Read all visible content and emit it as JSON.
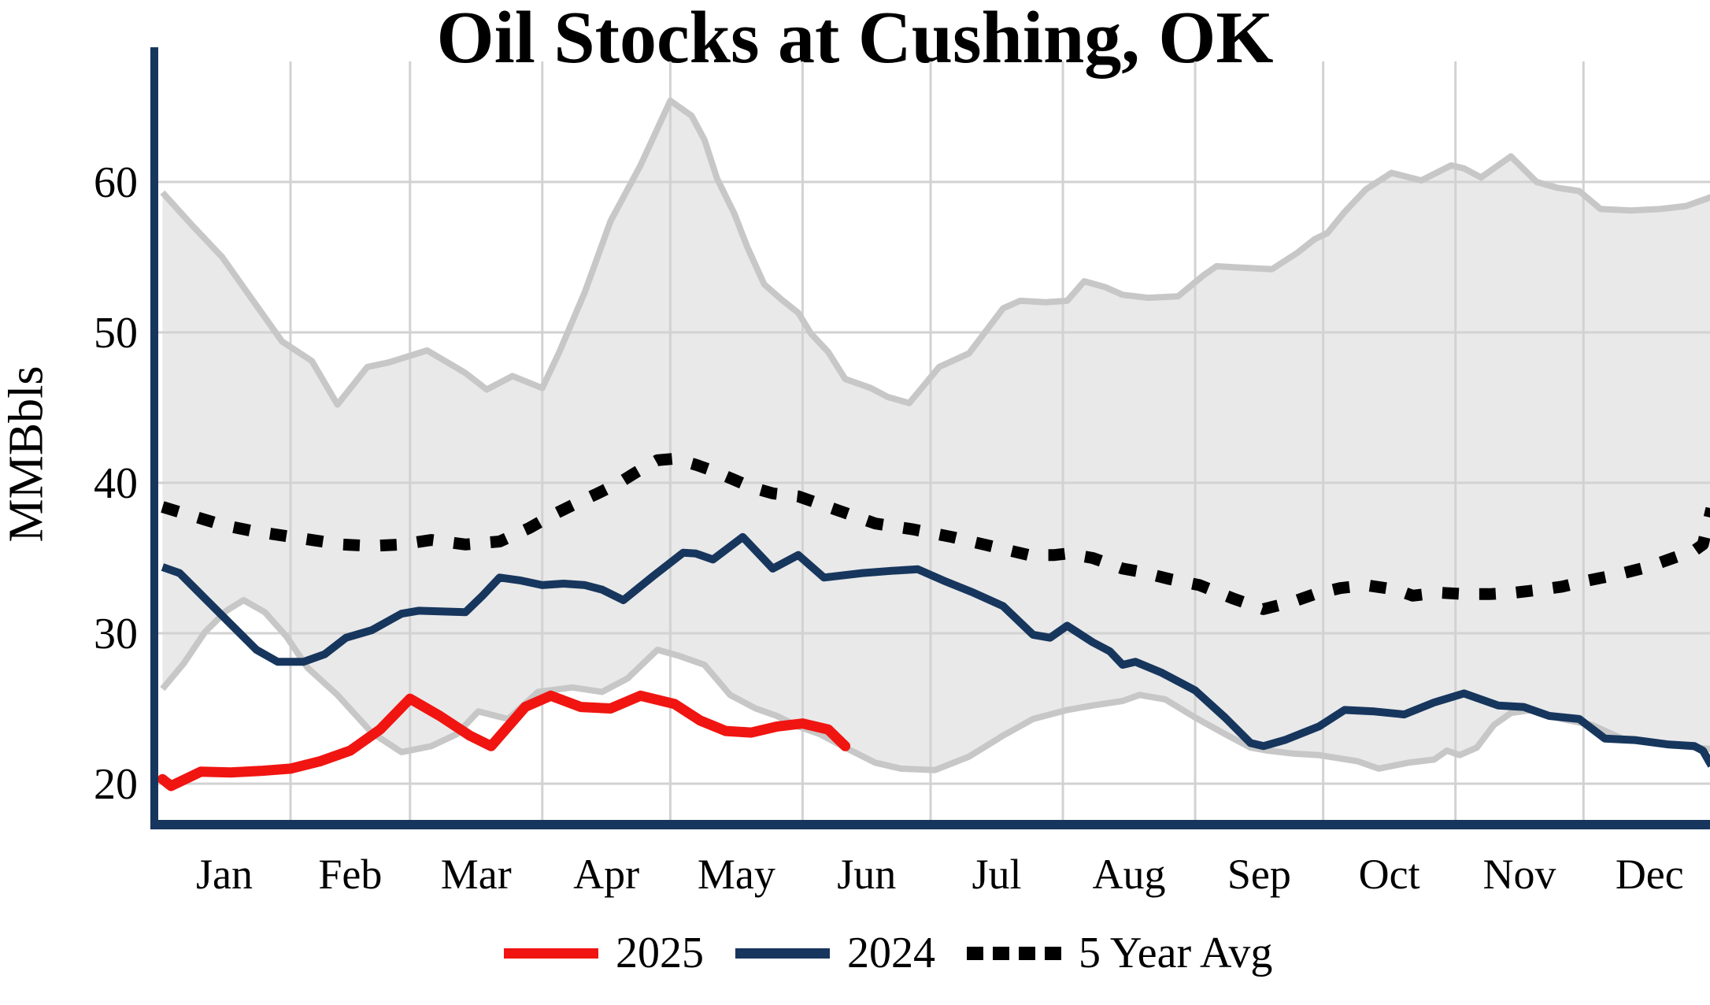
{
  "title": "Oil Stocks at Cushing, OK",
  "y_axis": {
    "label": "MMBbls",
    "ticks": [
      20,
      30,
      40,
      50,
      60
    ]
  },
  "x_axis": {
    "months": [
      "Jan",
      "Feb",
      "Mar",
      "Apr",
      "May",
      "Jun",
      "Jul",
      "Aug",
      "Sep",
      "Oct",
      "Nov",
      "Dec"
    ]
  },
  "legend": {
    "items": [
      {
        "label": "2025",
        "color": "#F01511",
        "style": "solid"
      },
      {
        "label": "2024",
        "color": "#17365D",
        "style": "solid"
      },
      {
        "label": "5 Year Avg",
        "color": "#000000",
        "style": "dotted"
      }
    ]
  },
  "colors": {
    "band_fill": "#E9E9E9",
    "band_edge": "#C7C7C7",
    "gridline": "#D2D2D2",
    "spine": "#17365D",
    "avg_line": "#000000",
    "line_2024": "#17365D",
    "line_2025": "#F01511"
  },
  "chart_data": {
    "type": "line",
    "title": "Oil Stocks at Cushing, OK",
    "xlabel": "",
    "ylabel": "MMBbls",
    "ylim": [
      17.3,
      72
    ],
    "x_unit": "day_of_year",
    "grid": true,
    "legend_position": "bottom",
    "month_days": [
      0,
      31,
      59,
      90,
      120,
      151,
      181,
      212,
      243,
      273,
      304,
      334,
      365
    ],
    "series": [
      {
        "name": "5 Year Range",
        "type": "band",
        "upper": [
          [
            1,
            59.3
          ],
          [
            8,
            57.1
          ],
          [
            15,
            55.0
          ],
          [
            22,
            52.2
          ],
          [
            29,
            49.4
          ],
          [
            36,
            48.1
          ],
          [
            42,
            45.2
          ],
          [
            49,
            47.7
          ],
          [
            54,
            48.0
          ],
          [
            63,
            48.8
          ],
          [
            72,
            47.3
          ],
          [
            77,
            46.2
          ],
          [
            83,
            47.1
          ],
          [
            90,
            46.3
          ],
          [
            94,
            48.7
          ],
          [
            100,
            52.7
          ],
          [
            106,
            57.4
          ],
          [
            113,
            61.1
          ],
          [
            120,
            65.4
          ],
          [
            125,
            64.4
          ],
          [
            128,
            62.8
          ],
          [
            131,
            60.2
          ],
          [
            135,
            57.9
          ],
          [
            138,
            55.7
          ],
          [
            142,
            53.2
          ],
          [
            146,
            52.2
          ],
          [
            150,
            51.3
          ],
          [
            153,
            49.9
          ],
          [
            157,
            48.7
          ],
          [
            161,
            46.9
          ],
          [
            167,
            46.3
          ],
          [
            171,
            45.7
          ],
          [
            176,
            45.3
          ],
          [
            183,
            47.7
          ],
          [
            190,
            48.6
          ],
          [
            198,
            51.6
          ],
          [
            202,
            52.1
          ],
          [
            208,
            52.0
          ],
          [
            213,
            52.1
          ],
          [
            217,
            53.4
          ],
          [
            222,
            53.0
          ],
          [
            226,
            52.5
          ],
          [
            232,
            52.3
          ],
          [
            239,
            52.4
          ],
          [
            245,
            53.8
          ],
          [
            248,
            54.4
          ],
          [
            254,
            54.3
          ],
          [
            261,
            54.2
          ],
          [
            267,
            55.3
          ],
          [
            271,
            56.2
          ],
          [
            274,
            56.6
          ],
          [
            278,
            58.0
          ],
          [
            283,
            59.5
          ],
          [
            289,
            60.6
          ],
          [
            296,
            60.1
          ],
          [
            303,
            61.1
          ],
          [
            306,
            60.9
          ],
          [
            310,
            60.3
          ],
          [
            317,
            61.7
          ],
          [
            323,
            60.0
          ],
          [
            328,
            59.6
          ],
          [
            333,
            59.4
          ],
          [
            338,
            58.2
          ],
          [
            345,
            58.1
          ],
          [
            352,
            58.2
          ],
          [
            358,
            58.4
          ],
          [
            364,
            59.0
          ]
        ],
        "lower": [
          [
            1,
            26.3
          ],
          [
            6,
            28.0
          ],
          [
            11,
            30.1
          ],
          [
            16,
            31.5
          ],
          [
            20,
            32.2
          ],
          [
            25,
            31.4
          ],
          [
            30,
            29.8
          ],
          [
            35,
            27.7
          ],
          [
            42,
            25.9
          ],
          [
            50,
            23.4
          ],
          [
            57,
            22.1
          ],
          [
            64,
            22.5
          ],
          [
            70,
            23.3
          ],
          [
            75,
            24.8
          ],
          [
            82,
            24.3
          ],
          [
            89,
            26.1
          ],
          [
            97,
            26.4
          ],
          [
            104,
            26.1
          ],
          [
            110,
            27.0
          ],
          [
            117,
            28.9
          ],
          [
            122,
            28.5
          ],
          [
            128,
            27.9
          ],
          [
            134,
            25.9
          ],
          [
            140,
            25.0
          ],
          [
            145,
            24.5
          ],
          [
            150,
            23.8
          ],
          [
            155,
            23.3
          ],
          [
            161,
            22.4
          ],
          [
            168,
            21.4
          ],
          [
            174,
            21.0
          ],
          [
            182,
            20.9
          ],
          [
            190,
            21.8
          ],
          [
            198,
            23.2
          ],
          [
            205,
            24.3
          ],
          [
            213,
            24.9
          ],
          [
            219,
            25.2
          ],
          [
            226,
            25.5
          ],
          [
            230,
            25.9
          ],
          [
            236,
            25.6
          ],
          [
            243,
            24.4
          ],
          [
            250,
            23.3
          ],
          [
            256,
            22.4
          ],
          [
            260,
            22.2
          ],
          [
            266,
            22.0
          ],
          [
            272,
            21.9
          ],
          [
            281,
            21.5
          ],
          [
            286,
            21.0
          ],
          [
            293,
            21.4
          ],
          [
            299,
            21.6
          ],
          [
            302,
            22.2
          ],
          [
            305,
            21.9
          ],
          [
            309,
            22.4
          ],
          [
            313,
            23.9
          ],
          [
            317,
            24.7
          ],
          [
            322,
            24.9
          ],
          [
            329,
            24.3
          ],
          [
            336,
            23.9
          ],
          [
            343,
            23.0
          ],
          [
            350,
            22.8
          ],
          [
            357,
            22.5
          ],
          [
            364,
            22.3
          ]
        ]
      },
      {
        "name": "5 Year Avg",
        "type": "dotted",
        "points": [
          [
            1,
            38.4
          ],
          [
            8,
            37.8
          ],
          [
            15,
            37.2
          ],
          [
            22,
            36.8
          ],
          [
            29,
            36.5
          ],
          [
            36,
            36.2
          ],
          [
            43,
            35.9
          ],
          [
            50,
            35.8
          ],
          [
            57,
            35.9
          ],
          [
            64,
            36.2
          ],
          [
            72,
            35.9
          ],
          [
            80,
            36.1
          ],
          [
            87,
            37.0
          ],
          [
            92,
            37.8
          ],
          [
            97,
            38.5
          ],
          [
            103,
            39.3
          ],
          [
            108,
            40.0
          ],
          [
            112,
            40.7
          ],
          [
            117,
            41.5
          ],
          [
            121,
            41.6
          ],
          [
            126,
            41.2
          ],
          [
            130,
            40.8
          ],
          [
            135,
            40.2
          ],
          [
            139,
            39.7
          ],
          [
            144,
            39.3
          ],
          [
            150,
            39.1
          ],
          [
            159,
            38.2
          ],
          [
            168,
            37.3
          ],
          [
            177,
            36.9
          ],
          [
            186,
            36.4
          ],
          [
            195,
            35.8
          ],
          [
            204,
            35.2
          ],
          [
            210,
            35.2
          ],
          [
            213,
            35.3
          ],
          [
            219,
            35.0
          ],
          [
            226,
            34.3
          ],
          [
            230,
            34.1
          ],
          [
            237,
            33.6
          ],
          [
            244,
            33.2
          ],
          [
            252,
            32.3
          ],
          [
            259,
            31.6
          ],
          [
            266,
            32.1
          ],
          [
            271,
            32.6
          ],
          [
            277,
            33.0
          ],
          [
            283,
            33.2
          ],
          [
            290,
            32.9
          ],
          [
            294,
            32.5
          ],
          [
            300,
            32.7
          ],
          [
            306,
            32.6
          ],
          [
            312,
            32.6
          ],
          [
            318,
            32.7
          ],
          [
            324,
            32.9
          ],
          [
            329,
            33.1
          ],
          [
            335,
            33.5
          ],
          [
            342,
            33.9
          ],
          [
            349,
            34.4
          ],
          [
            355,
            35.0
          ],
          [
            360,
            35.5
          ],
          [
            362,
            35.9
          ],
          [
            364,
            38.3
          ]
        ]
      },
      {
        "name": "2024",
        "type": "solid",
        "points": [
          [
            1,
            34.4
          ],
          [
            5,
            34.0
          ],
          [
            11,
            32.3
          ],
          [
            17,
            30.6
          ],
          [
            23,
            28.9
          ],
          [
            28,
            28.1
          ],
          [
            34,
            28.1
          ],
          [
            39,
            28.6
          ],
          [
            44,
            29.7
          ],
          [
            50,
            30.2
          ],
          [
            57,
            31.3
          ],
          [
            61,
            31.5
          ],
          [
            66,
            31.45
          ],
          [
            72,
            31.4
          ],
          [
            76,
            32.5
          ],
          [
            80,
            33.7
          ],
          [
            85,
            33.5
          ],
          [
            90,
            33.2
          ],
          [
            95,
            33.3
          ],
          [
            100,
            33.2
          ],
          [
            104,
            32.9
          ],
          [
            109,
            32.2
          ],
          [
            116,
            33.8
          ],
          [
            123,
            35.35
          ],
          [
            126,
            35.3
          ],
          [
            130,
            34.9
          ],
          [
            137,
            36.4
          ],
          [
            144,
            34.3
          ],
          [
            150,
            35.2
          ],
          [
            156,
            33.7
          ],
          [
            165,
            34.0
          ],
          [
            172,
            34.15
          ],
          [
            178,
            34.25
          ],
          [
            184,
            33.5
          ],
          [
            191,
            32.7
          ],
          [
            198,
            31.8
          ],
          [
            205,
            29.9
          ],
          [
            209,
            29.7
          ],
          [
            213,
            30.5
          ],
          [
            219,
            29.4
          ],
          [
            223,
            28.8
          ],
          [
            226,
            27.9
          ],
          [
            229,
            28.1
          ],
          [
            235,
            27.4
          ],
          [
            243,
            26.2
          ],
          [
            250,
            24.4
          ],
          [
            256,
            22.7
          ],
          [
            259,
            22.5
          ],
          [
            264,
            22.9
          ],
          [
            272,
            23.8
          ],
          [
            278,
            24.9
          ],
          [
            285,
            24.8
          ],
          [
            292,
            24.6
          ],
          [
            299,
            25.4
          ],
          [
            306,
            26.0
          ],
          [
            314,
            25.2
          ],
          [
            320,
            25.1
          ],
          [
            326,
            24.5
          ],
          [
            333,
            24.3
          ],
          [
            339,
            23.0
          ],
          [
            346,
            22.9
          ],
          [
            354,
            22.6
          ],
          [
            360,
            22.5
          ],
          [
            362,
            22.2
          ],
          [
            364,
            21.2
          ]
        ]
      },
      {
        "name": "2025",
        "type": "solid",
        "points": [
          [
            1,
            20.3
          ],
          [
            3,
            19.85
          ],
          [
            10,
            20.8
          ],
          [
            17,
            20.75
          ],
          [
            24,
            20.85
          ],
          [
            31,
            21.0
          ],
          [
            38,
            21.5
          ],
          [
            45,
            22.2
          ],
          [
            52,
            23.6
          ],
          [
            59,
            25.65
          ],
          [
            66,
            24.5
          ],
          [
            73,
            23.2
          ],
          [
            78,
            22.5
          ],
          [
            86,
            25.1
          ],
          [
            92,
            25.85
          ],
          [
            99,
            25.1
          ],
          [
            106,
            25.0
          ],
          [
            113,
            25.85
          ],
          [
            121,
            25.3
          ],
          [
            127,
            24.2
          ],
          [
            133,
            23.5
          ],
          [
            139,
            23.4
          ],
          [
            145,
            23.8
          ],
          [
            151,
            24.0
          ],
          [
            157,
            23.6
          ],
          [
            161,
            22.5
          ]
        ]
      }
    ]
  }
}
